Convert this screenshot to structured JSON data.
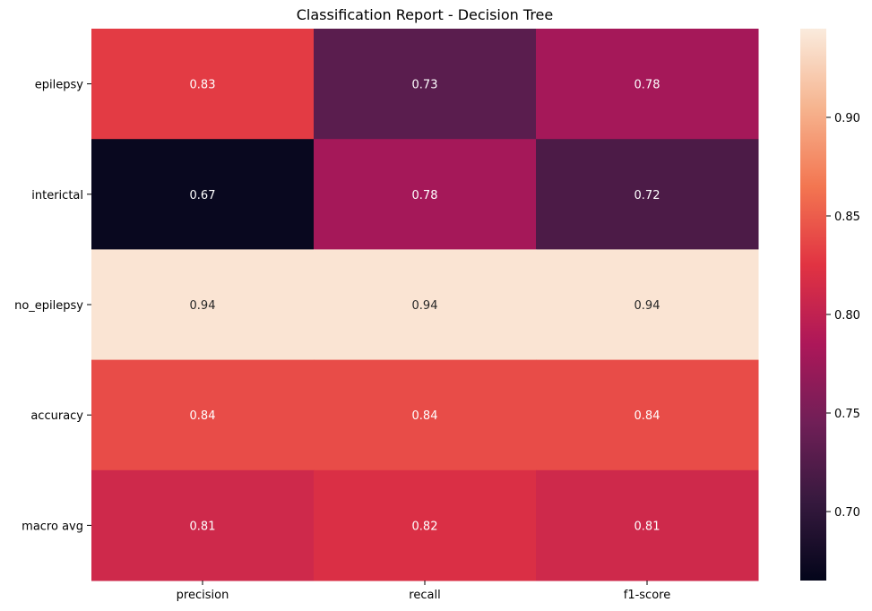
{
  "chart_data": {
    "type": "heatmap",
    "title": "Classification Report - Decision Tree",
    "columns": [
      "precision",
      "recall",
      "f1-score"
    ],
    "rows": [
      "epilepsy",
      "interictal",
      "no_epilepsy",
      "accuracy",
      "macro avg"
    ],
    "values": [
      [
        0.83,
        0.73,
        0.78
      ],
      [
        0.67,
        0.78,
        0.72
      ],
      [
        0.94,
        0.94,
        0.94
      ],
      [
        0.84,
        0.84,
        0.84
      ],
      [
        0.81,
        0.82,
        0.81
      ]
    ],
    "cell_labels": [
      [
        "0.83",
        "0.73",
        "0.78"
      ],
      [
        "0.67",
        "0.78",
        "0.72"
      ],
      [
        "0.94",
        "0.94",
        "0.94"
      ],
      [
        "0.84",
        "0.84",
        "0.84"
      ],
      [
        "0.81",
        "0.82",
        "0.81"
      ]
    ],
    "colormap": "rocket",
    "vmin": 0.665,
    "vmax": 0.945,
    "colorbar_ticks": [
      "0.70",
      "0.75",
      "0.80",
      "0.85",
      "0.90"
    ],
    "colorbar_tick_values": [
      0.7,
      0.75,
      0.8,
      0.85,
      0.9
    ],
    "colors": [
      "#03051a",
      "#36193e",
      "#701f57",
      "#ad1759",
      "#e13342",
      "#f37651",
      "#f6b48f",
      "#faebdd"
    ]
  }
}
